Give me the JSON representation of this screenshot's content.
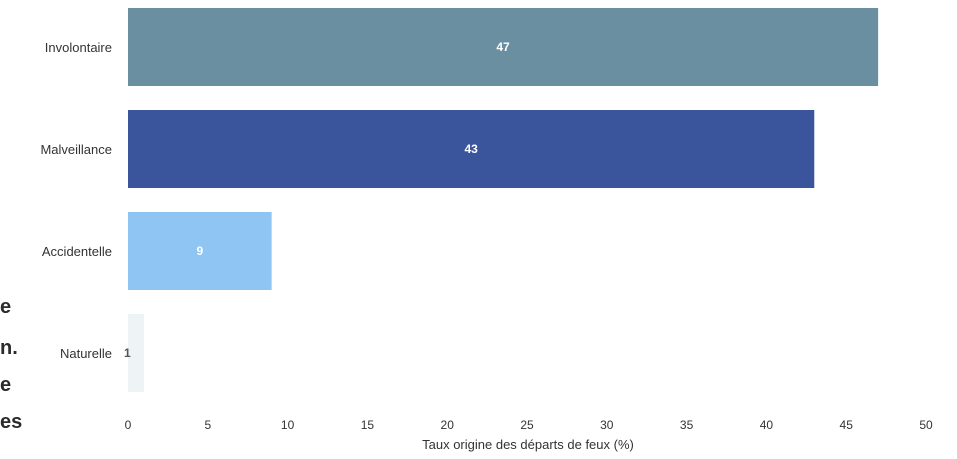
{
  "page_fragments": [
    "e",
    "n.",
    "e",
    "es"
  ],
  "chart_data": {
    "type": "bar",
    "orientation": "horizontal",
    "categories": [
      "Involontaire",
      "Malveillance",
      "Accidentelle",
      "Naturelle"
    ],
    "values": [
      47,
      43,
      9,
      1
    ],
    "data_labels": [
      "47",
      "43",
      "9",
      "1"
    ],
    "colors": [
      "#6a8fa0",
      "#3a559c",
      "#8ec5f2",
      "#eef4f6"
    ],
    "label_colors": [
      "#ffffff",
      "#ffffff",
      "#ffffff",
      "#555555"
    ],
    "xlabel": "Taux origine des départs de feux (%)",
    "xlim": [
      0,
      50
    ],
    "xticks": [
      0,
      5,
      10,
      15,
      20,
      25,
      30,
      35,
      40,
      45,
      50
    ],
    "grid": false,
    "legend": "none"
  }
}
